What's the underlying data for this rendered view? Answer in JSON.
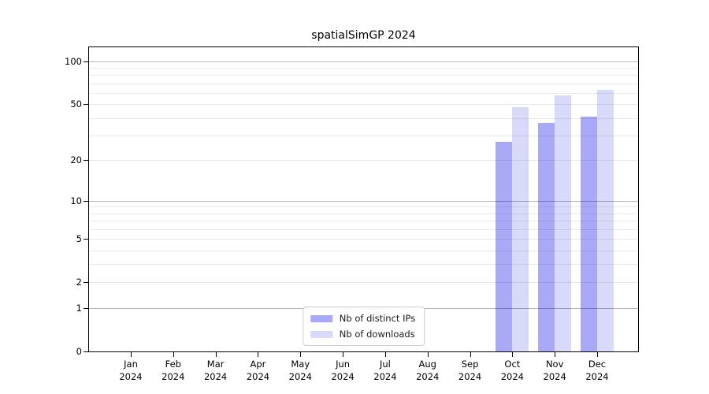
{
  "chart_data": {
    "type": "bar",
    "title": "spatialSimGP 2024",
    "categories": [
      "Jan 2024",
      "Feb 2024",
      "Mar 2024",
      "Apr 2024",
      "May 2024",
      "Jun 2024",
      "Jul 2024",
      "Aug 2024",
      "Sep 2024",
      "Oct 2024",
      "Nov 2024",
      "Dec 2024"
    ],
    "months": [
      "Jan",
      "Feb",
      "Mar",
      "Apr",
      "May",
      "Jun",
      "Jul",
      "Aug",
      "Sep",
      "Oct",
      "Nov",
      "Dec"
    ],
    "year": "2024",
    "series": [
      {
        "name": "Nb of distinct IPs",
        "color": "#a9a9f8",
        "values": [
          0,
          0,
          0,
          0,
          0,
          0,
          0,
          0,
          0,
          27,
          37,
          41
        ]
      },
      {
        "name": "Nb of downloads",
        "color": "#d9d9fa",
        "values": [
          0,
          0,
          0,
          0,
          0,
          0,
          0,
          0,
          0,
          48,
          58,
          63
        ]
      }
    ],
    "y_axis": {
      "scale": "log1p",
      "tick_values": [
        0,
        1,
        2,
        5,
        10,
        20,
        50,
        100
      ],
      "decade_gridlines": [
        1,
        10,
        100
      ],
      "minor_gridlines": [
        2,
        3,
        4,
        5,
        6,
        7,
        8,
        9,
        20,
        30,
        40,
        50,
        60,
        70,
        80,
        90
      ],
      "max": 125
    },
    "grid": true,
    "legend_position": "bottom-center",
    "colors": {
      "bar_ips": "#a9a9f8",
      "bar_downloads": "#d9d9fa",
      "decade_grid": "#b6b6b6",
      "minor_grid": "#ebebeb",
      "spine": "#000000"
    }
  }
}
